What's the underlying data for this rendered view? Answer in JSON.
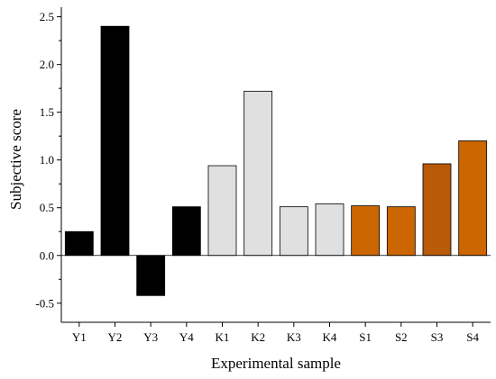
{
  "chart_data": {
    "type": "bar",
    "title": "",
    "xlabel": "Experimental sample",
    "ylabel": "Subjective score",
    "ylim": [
      -0.7,
      2.6
    ],
    "yticks": [
      -0.5,
      0.0,
      0.5,
      1.0,
      1.5,
      2.0,
      2.5
    ],
    "ytick_labels": [
      "-0.5",
      "0.0",
      "0.5",
      "1.0",
      "1.5",
      "2.0",
      "2.5"
    ],
    "categories": [
      "Y1",
      "Y2",
      "Y3",
      "Y4",
      "K1",
      "K2",
      "K3",
      "K4",
      "S1",
      "S2",
      "S3",
      "S4"
    ],
    "values": [
      0.25,
      2.4,
      -0.42,
      0.51,
      0.94,
      1.72,
      0.51,
      0.54,
      0.52,
      0.51,
      0.96,
      1.2
    ],
    "bar_colors": [
      "#000000",
      "#000000",
      "#000000",
      "#000000",
      "#e0e0e0",
      "#e0e0e0",
      "#e0e0e0",
      "#e0e0e0",
      "#cc6600",
      "#cc6600",
      "#b85a08",
      "#cc6600"
    ],
    "grid": false,
    "legend": "none"
  }
}
